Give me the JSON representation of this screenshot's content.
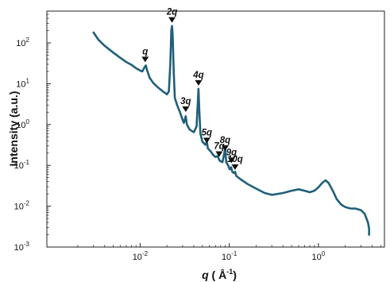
{
  "chart_data": {
    "type": "line",
    "title": "",
    "ylabel": "Intensity (a.u.)",
    "xlabel": {
      "var": "q",
      "unit_open": " ( ",
      "unit_main": "Å",
      "unit_sup": "-1",
      "unit_close": ")"
    },
    "xscale": "log",
    "yscale": "log",
    "xlim": [
      0.0009,
      5.5
    ],
    "ylim": [
      0.001,
      600
    ],
    "line_color": "#1f5f7a",
    "x_ticks": [
      {
        "value": 0.01,
        "base": "10",
        "exp": "-2"
      },
      {
        "value": 0.1,
        "base": "10",
        "exp": "-1"
      },
      {
        "value": 1,
        "base": "10",
        "exp": "0"
      }
    ],
    "y_ticks": [
      {
        "value": 0.001,
        "base": "10",
        "exp": "-3"
      },
      {
        "value": 0.01,
        "base": "10",
        "exp": "-2"
      },
      {
        "value": 0.1,
        "base": "10",
        "exp": "-1"
      },
      {
        "value": 1,
        "base": "10",
        "exp": "0"
      },
      {
        "value": 10,
        "base": "10",
        "exp": "1"
      },
      {
        "value": 100,
        "base": "10",
        "exp": "2"
      }
    ],
    "series": [
      {
        "points": [
          [
            0.003,
            180
          ],
          [
            0.0034,
            120
          ],
          [
            0.004,
            85
          ],
          [
            0.005,
            58
          ],
          [
            0.006,
            43
          ],
          [
            0.007,
            34
          ],
          [
            0.008,
            29
          ],
          [
            0.009,
            24
          ],
          [
            0.01,
            21
          ],
          [
            0.0106,
            20
          ],
          [
            0.0112,
            25
          ],
          [
            0.0116,
            28
          ],
          [
            0.012,
            21
          ],
          [
            0.0128,
            14
          ],
          [
            0.014,
            10.5
          ],
          [
            0.016,
            8
          ],
          [
            0.018,
            6.5
          ],
          [
            0.02,
            5.5
          ],
          [
            0.021,
            6.5
          ],
          [
            0.0218,
            30
          ],
          [
            0.0224,
            200
          ],
          [
            0.0228,
            260
          ],
          [
            0.0232,
            150
          ],
          [
            0.0238,
            20
          ],
          [
            0.0245,
            4.5
          ],
          [
            0.026,
            3.0
          ],
          [
            0.028,
            2.0
          ],
          [
            0.03,
            1.3
          ],
          [
            0.031,
            1.1
          ],
          [
            0.0325,
            1.6
          ],
          [
            0.0335,
            1.0
          ],
          [
            0.036,
            0.75
          ],
          [
            0.04,
            0.65
          ],
          [
            0.043,
            0.9
          ],
          [
            0.0445,
            4.0
          ],
          [
            0.0452,
            7.5
          ],
          [
            0.046,
            2.5
          ],
          [
            0.0475,
            0.6
          ],
          [
            0.05,
            0.38
          ],
          [
            0.054,
            0.32
          ],
          [
            0.056,
            0.38
          ],
          [
            0.0575,
            0.26
          ],
          [
            0.062,
            0.22
          ],
          [
            0.066,
            0.18
          ],
          [
            0.07,
            0.16
          ],
          [
            0.074,
            0.17
          ],
          [
            0.078,
            0.13
          ],
          [
            0.084,
            0.12
          ],
          [
            0.088,
            0.2
          ],
          [
            0.09,
            0.26
          ],
          [
            0.0925,
            0.12
          ],
          [
            0.097,
            0.1
          ],
          [
            0.101,
            0.08
          ],
          [
            0.105,
            0.09
          ],
          [
            0.108,
            0.07
          ],
          [
            0.112,
            0.065
          ],
          [
            0.116,
            0.07
          ],
          [
            0.12,
            0.055
          ],
          [
            0.135,
            0.045
          ],
          [
            0.16,
            0.035
          ],
          [
            0.2,
            0.027
          ],
          [
            0.25,
            0.021
          ],
          [
            0.3,
            0.019
          ],
          [
            0.4,
            0.021
          ],
          [
            0.5,
            0.024
          ],
          [
            0.6,
            0.026
          ],
          [
            0.7,
            0.024
          ],
          [
            0.8,
            0.022
          ],
          [
            0.9,
            0.024
          ],
          [
            1.0,
            0.029
          ],
          [
            1.1,
            0.037
          ],
          [
            1.2,
            0.043
          ],
          [
            1.3,
            0.037
          ],
          [
            1.45,
            0.024
          ],
          [
            1.6,
            0.015
          ],
          [
            1.8,
            0.011
          ],
          [
            2.0,
            0.0095
          ],
          [
            2.3,
            0.0088
          ],
          [
            2.6,
            0.0088
          ],
          [
            3.0,
            0.008
          ],
          [
            3.3,
            0.0065
          ],
          [
            3.6,
            0.004
          ],
          [
            3.7,
            0.0028
          ],
          [
            3.7,
            0.002
          ]
        ]
      }
    ],
    "peaks": [
      {
        "label": "q",
        "x": 0.0114,
        "y": 28
      },
      {
        "label": "2q",
        "x": 0.0228,
        "y": 260
      },
      {
        "label": "3q",
        "x": 0.0325,
        "y": 1.7
      },
      {
        "label": "4q",
        "x": 0.0452,
        "y": 7.5
      },
      {
        "label": "5q",
        "x": 0.056,
        "y": 0.29
      },
      {
        "label": "7q",
        "x": 0.077,
        "y": 0.135
      },
      {
        "label": "8q",
        "x": 0.09,
        "y": 0.19
      },
      {
        "label": "9q",
        "x": 0.106,
        "y": 0.095
      },
      {
        "label": "10q",
        "x": 0.116,
        "y": 0.065
      }
    ]
  }
}
